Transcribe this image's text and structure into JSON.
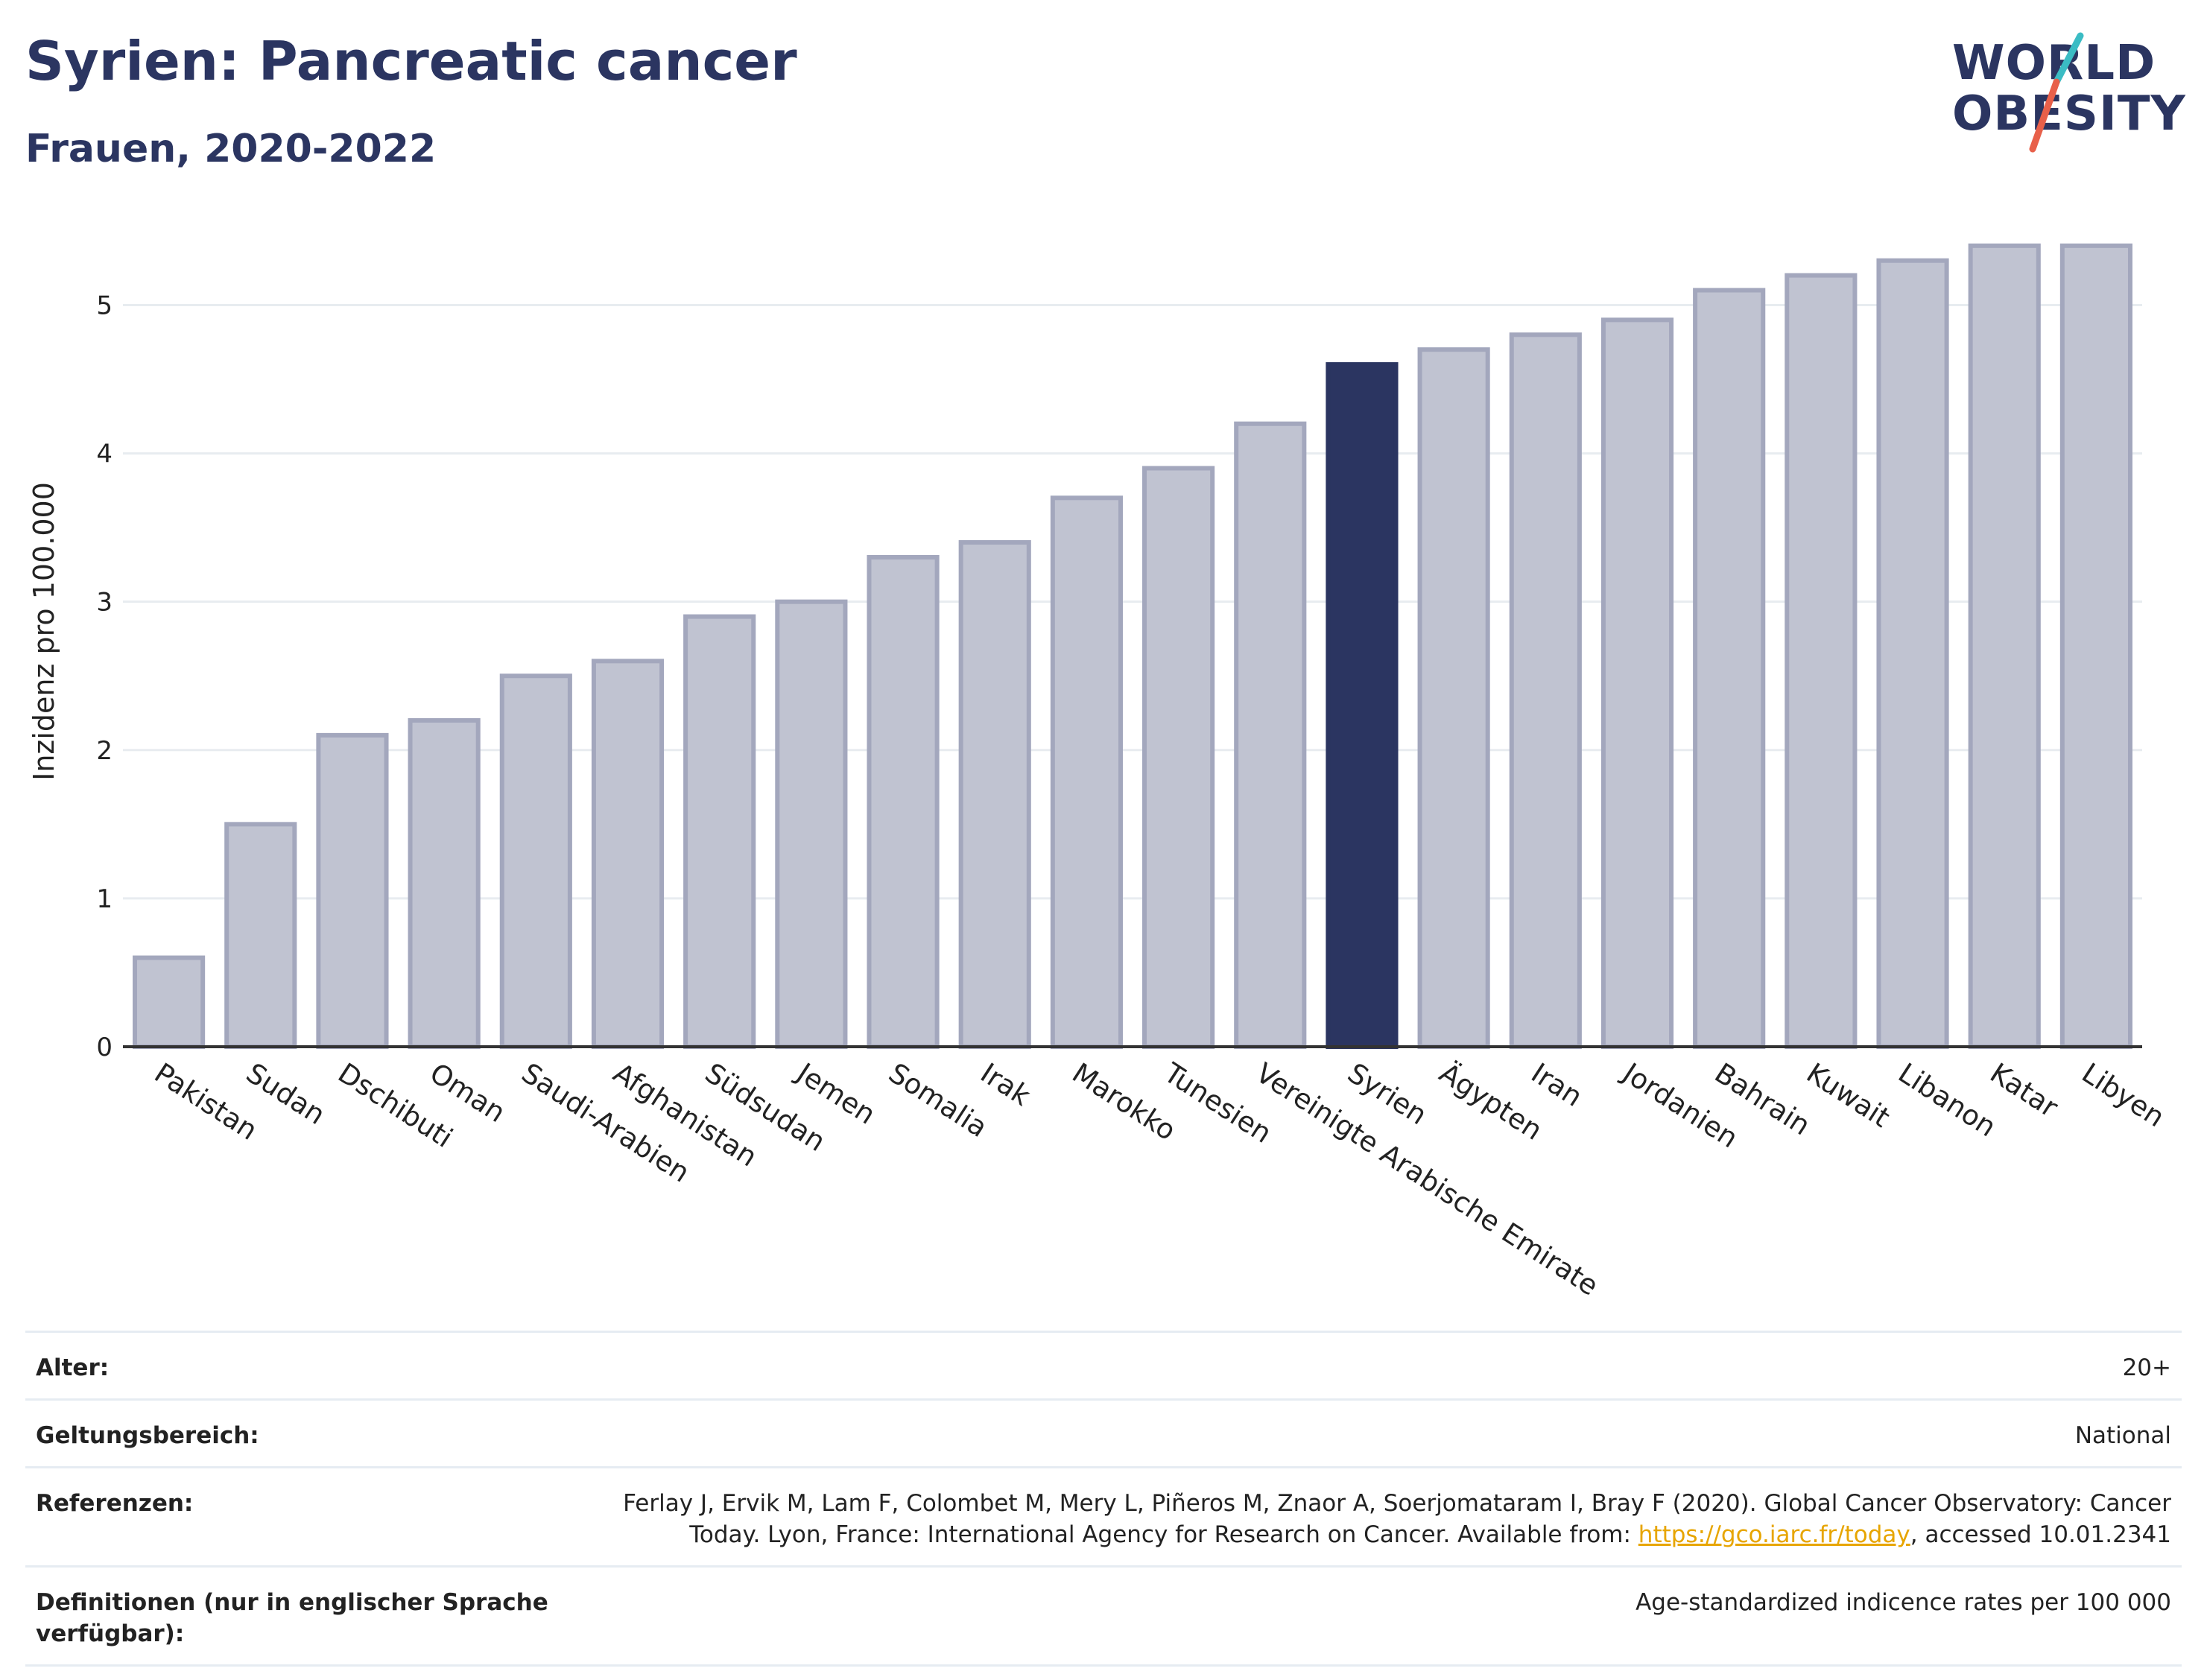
{
  "header": {
    "title": "Syrien: Pancreatic cancer",
    "subtitle": "Frauen, 2020-2022"
  },
  "logo": {
    "line1": "WORLD",
    "line2": "OBESITY",
    "accent_teal": "#3bbcc4",
    "accent_red": "#e8604a"
  },
  "colors": {
    "highlight_bar": "#2b3561",
    "other_bar": "#c0c3d1",
    "other_bar_stroke": "#a3a7bd",
    "grid": "#e8ecf0",
    "axis": "#333333"
  },
  "chart_data": {
    "type": "bar",
    "ylabel": "Inzidenz pro 100.000",
    "xlabel": "",
    "ylim": [
      0,
      5.6
    ],
    "yticks": [
      0,
      1,
      2,
      3,
      4,
      5
    ],
    "grid": true,
    "highlight": "Syrien",
    "categories": [
      "Pakistan",
      "Sudan",
      "Dschibuti",
      "Oman",
      "Saudi-Arabien",
      "Afghanistan",
      "Südsudan",
      "Jemen",
      "Somalia",
      "Irak",
      "Marokko",
      "Tunesien",
      "Vereinigte Arabische Emirate",
      "Syrien",
      "Ägypten",
      "Iran",
      "Jordanien",
      "Bahrain",
      "Kuwait",
      "Libanon",
      "Katar",
      "Libyen"
    ],
    "values": [
      0.6,
      1.5,
      2.1,
      2.2,
      2.5,
      2.6,
      2.9,
      3.0,
      3.3,
      3.4,
      3.7,
      3.9,
      4.2,
      4.6,
      4.7,
      4.8,
      4.9,
      5.1,
      5.2,
      5.3,
      5.4,
      5.4
    ]
  },
  "meta": {
    "age_label": "Alter:",
    "age_value": "20+",
    "scope_label": "Geltungsbereich:",
    "scope_value": "National",
    "ref_label": "Referenzen:",
    "ref_text_before": "Ferlay J, Ervik M, Lam F, Colombet M, Mery L, Piñeros M, Znaor A, Soerjomataram I, Bray F (2020). Global Cancer Observatory: Cancer Today. Lyon, France: International Agency for Research on Cancer. Available from: ",
    "ref_link": "https://gco.iarc.fr/today",
    "ref_text_after": ", accessed 10.01.2341",
    "def_label": "Definitionen (nur in englischer Sprache verfügbar):",
    "def_value": "Age-standardized indicence rates per 100 000"
  }
}
